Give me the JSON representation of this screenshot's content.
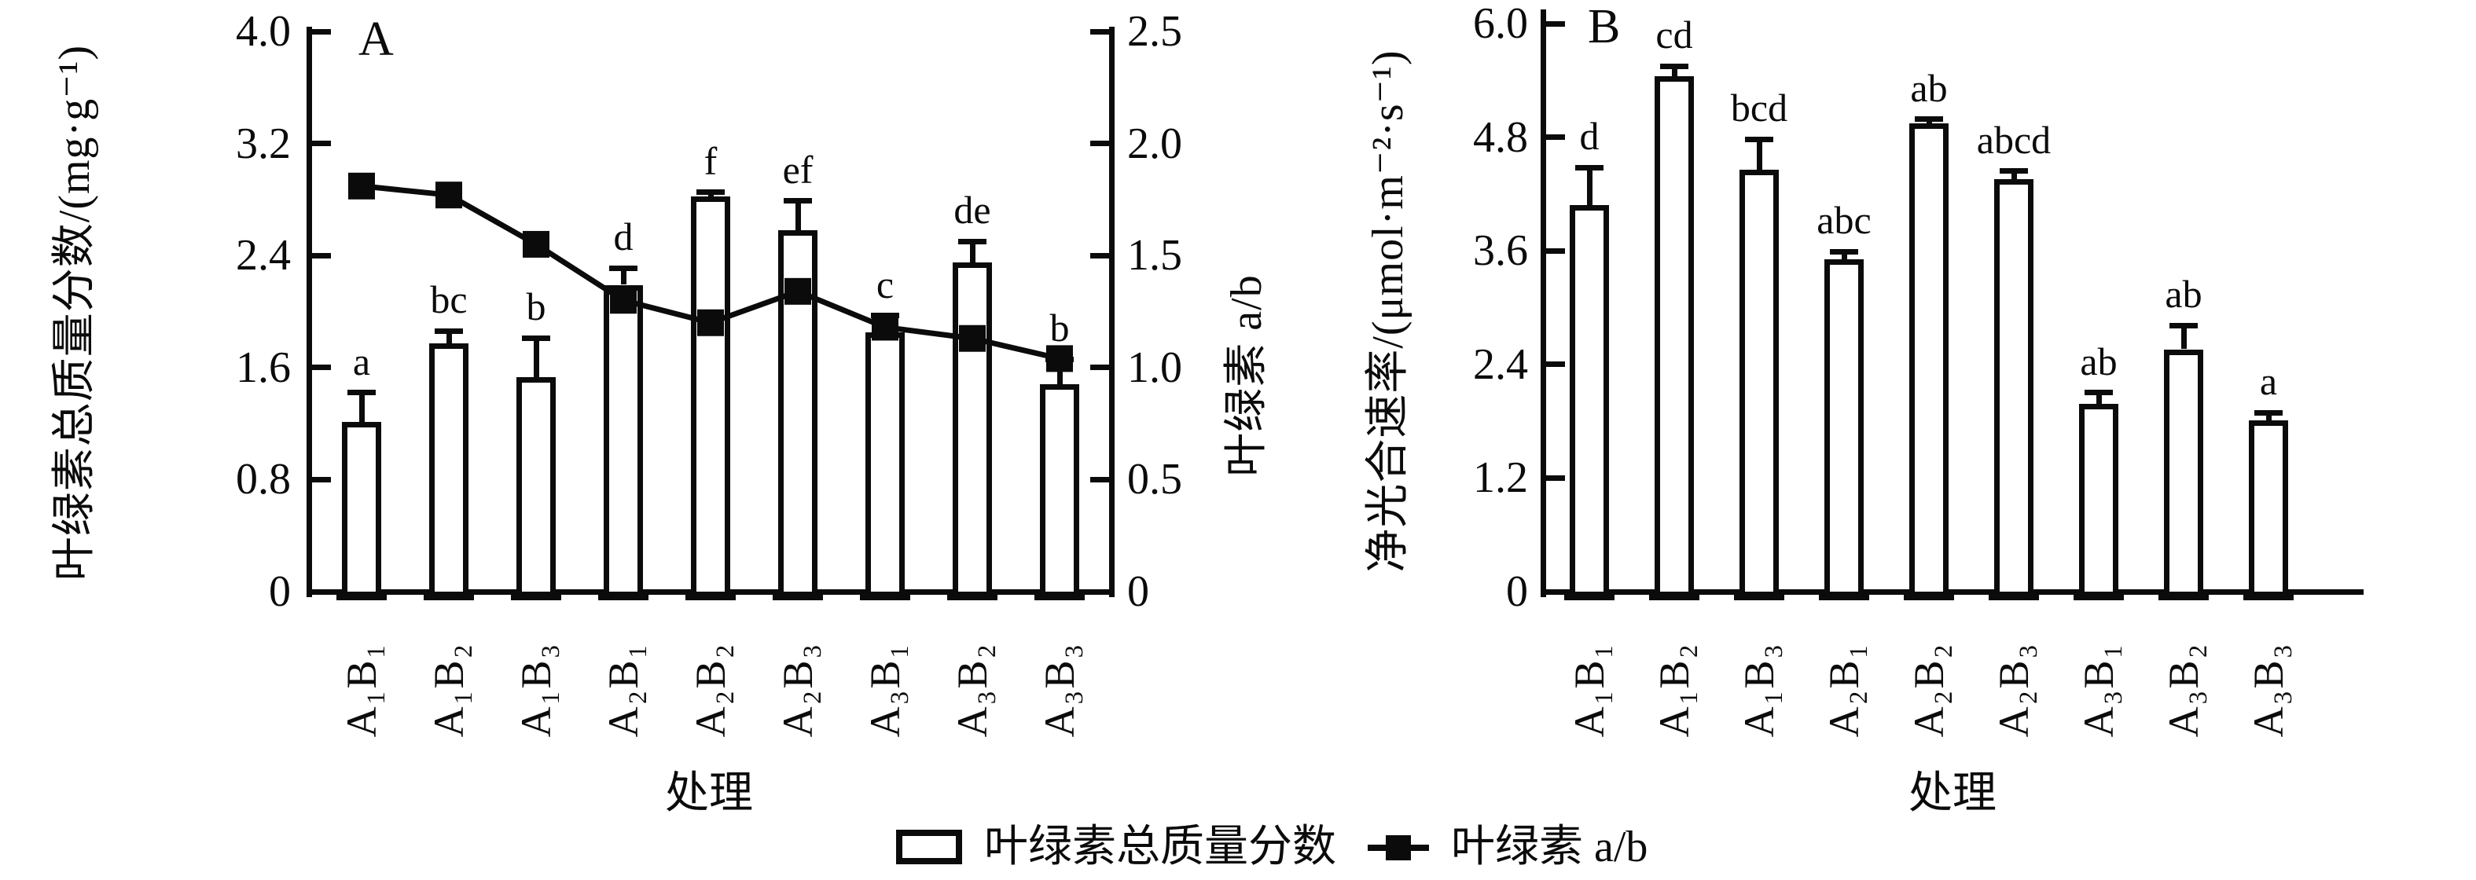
{
  "figure_background": "#ffffff",
  "ink_color": "#0b0b0b",
  "bar_fill": "#ffffff",
  "legend": {
    "items": [
      {
        "label": "叶绿素总质量分数",
        "swatch": "open-bar"
      },
      {
        "label": "叶绿素 a/b",
        "swatch": "line-with-filled-square"
      }
    ]
  },
  "chart_data": [
    {
      "type": "bar",
      "panel_label": "A",
      "xlabel": "处理",
      "categories": [
        "A₁B₁",
        "A₁B₂",
        "A₁B₃",
        "A₂B₁",
        "A₂B₂",
        "A₂B₃",
        "A₃B₁",
        "A₃B₂",
        "A₃B₃"
      ],
      "left_axis": {
        "label": "叶绿素总质量分数/(mg·g⁻¹)",
        "tick_labels": [
          "0",
          "0.8",
          "1.6",
          "2.4",
          "3.2",
          "4.0"
        ],
        "lim": [
          0,
          4.0
        ],
        "grid": false
      },
      "right_axis": {
        "label": "叶绿素 a/b",
        "tick_labels": [
          "0",
          "0.5",
          "1.0",
          "1.5",
          "2.0",
          "2.5"
        ],
        "lim": [
          0,
          2.5
        ]
      },
      "series": [
        {
          "name": "叶绿素总质量分数",
          "type": "bar",
          "axis": "left",
          "values": [
            1.21,
            1.77,
            1.53,
            2.19,
            2.82,
            2.58,
            1.85,
            2.35,
            1.48
          ],
          "errors": [
            0.21,
            0.09,
            0.28,
            0.12,
            0.03,
            0.21,
            0.12,
            0.15,
            0.18
          ],
          "sig_letters": [
            "a",
            "bc",
            "b",
            "d",
            "f",
            "ef",
            "c",
            "de",
            "b"
          ]
        },
        {
          "name": "叶绿素 a/b",
          "type": "line",
          "axis": "right",
          "marker": "filled-square",
          "values": [
            1.81,
            1.77,
            1.55,
            1.3,
            1.2,
            1.34,
            1.18,
            1.13,
            1.04
          ]
        }
      ]
    },
    {
      "type": "bar",
      "panel_label": "B",
      "xlabel": "处理",
      "categories": [
        "A₁B₁",
        "A₁B₂",
        "A₁B₃",
        "A₂B₁",
        "A₂B₂",
        "A₂B₃",
        "A₃B₁",
        "A₃B₂",
        "A₃B₃"
      ],
      "left_axis": {
        "label": "净光合速率/(μmol·m⁻²·s⁻¹)",
        "tick_labels": [
          "0",
          "1.2",
          "2.4",
          "3.6",
          "4.8",
          "6.0"
        ],
        "lim": [
          0,
          6.0
        ],
        "grid": false
      },
      "series": [
        {
          "name": "净光合速率",
          "type": "bar",
          "axis": "left",
          "values": [
            4.08,
            5.44,
            4.46,
            3.51,
            4.95,
            4.36,
            1.98,
            2.56,
            1.81
          ],
          "errors": [
            0.4,
            0.11,
            0.32,
            0.08,
            0.04,
            0.08,
            0.12,
            0.25,
            0.08
          ],
          "sig_letters": [
            "d",
            "cd",
            "bcd",
            "abc",
            "ab",
            "abcd",
            "ab",
            "ab",
            "a"
          ]
        }
      ]
    }
  ]
}
